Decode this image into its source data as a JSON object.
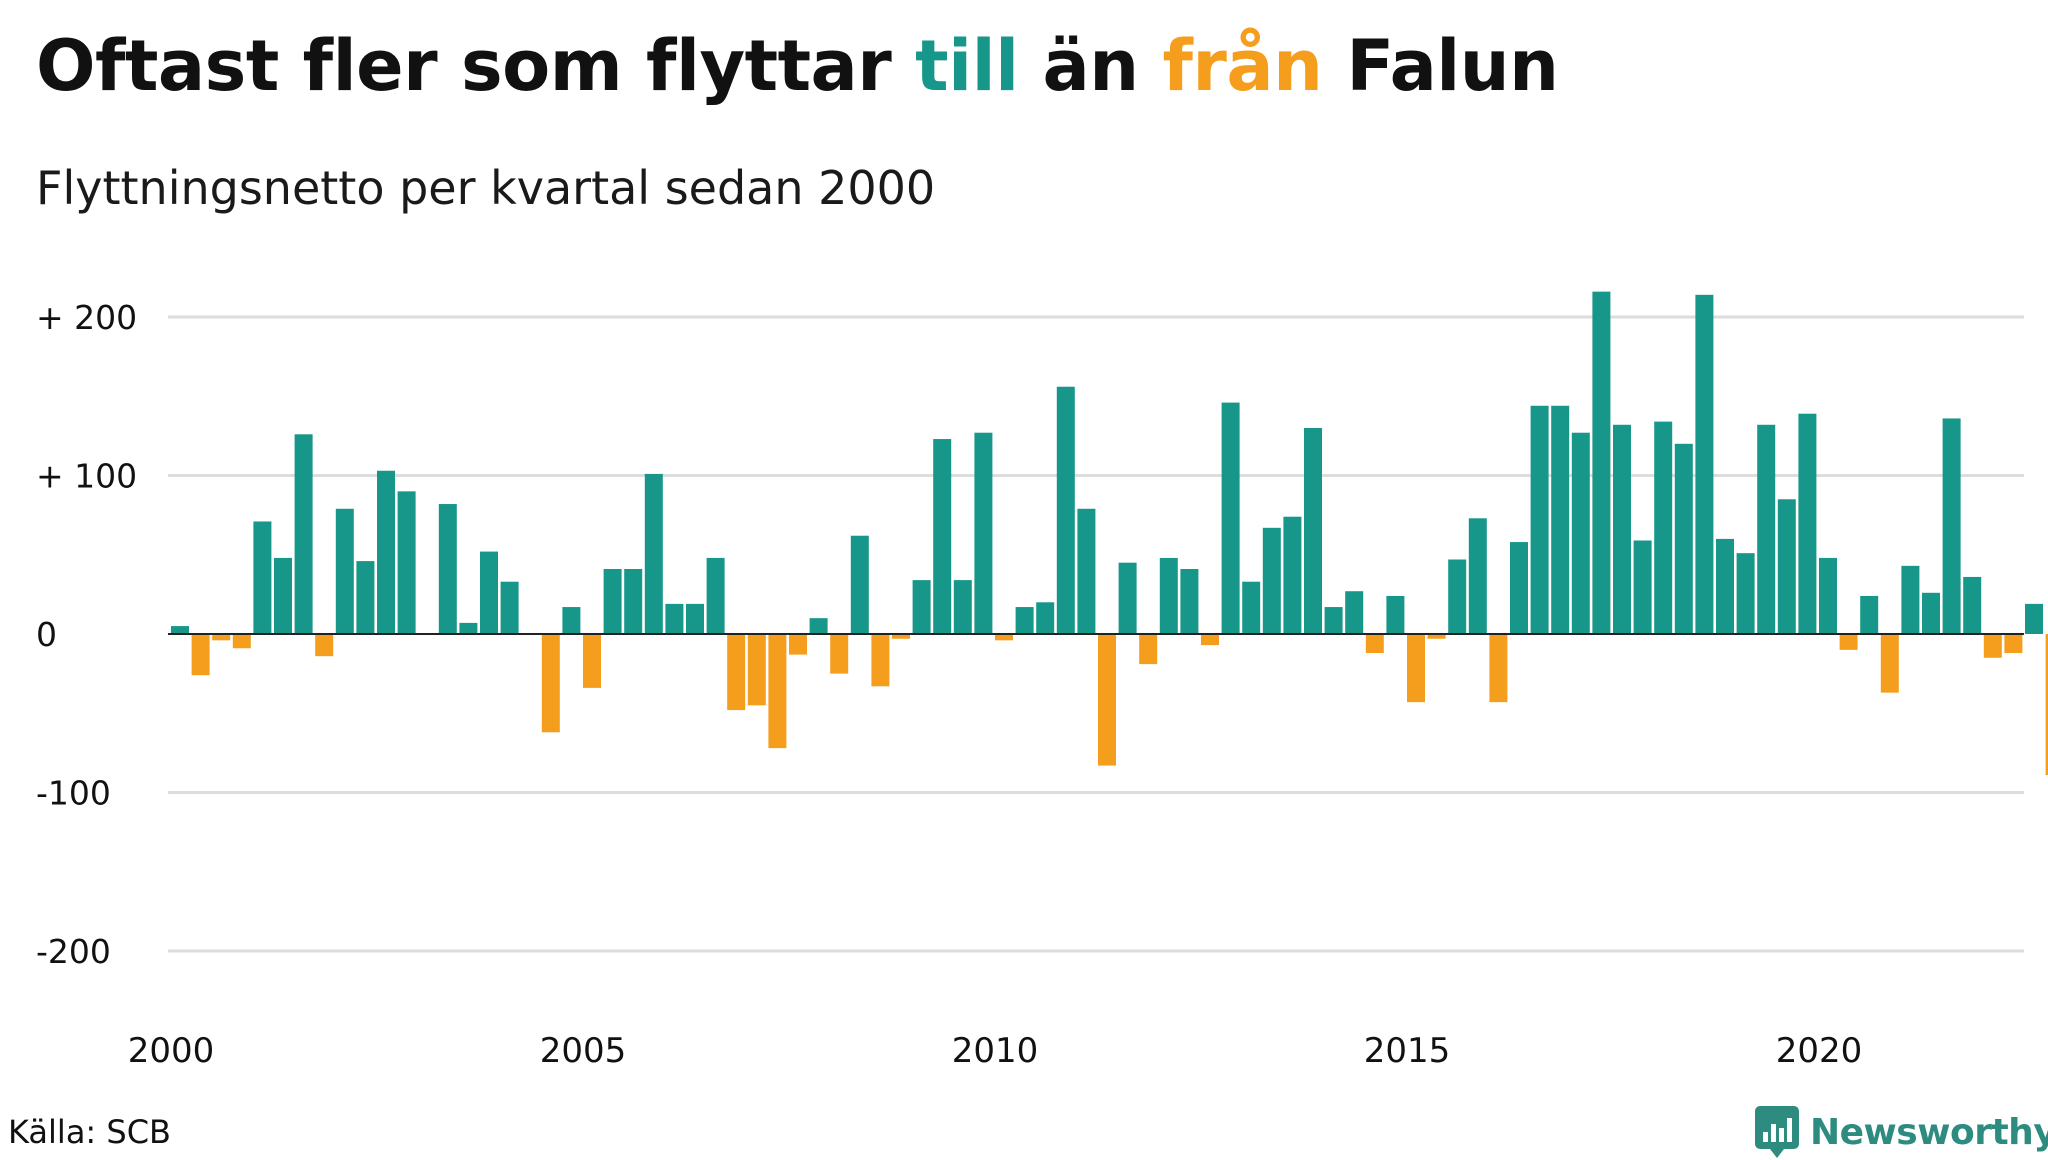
{
  "title": {
    "part1": "Oftast fler som flyttar ",
    "till": "till",
    "part2": " än ",
    "fran": "från",
    "part3": " Falun"
  },
  "subtitle": "Flyttningsnetto per kvartal sedan 2000",
  "source": "Källa: SCB",
  "brand": "Newsworthy",
  "colors": {
    "positive": "#17978a",
    "negative": "#f59e1d",
    "grid": "#dddddd",
    "baseline": "#222222",
    "text": "#111111",
    "brand": "#2e8b80"
  },
  "chart_data": {
    "type": "bar",
    "title": "Oftast fler som flyttar till än från Falun",
    "subtitle": "Flyttningsnetto per kvartal sedan 2000",
    "x_start": 2000,
    "periods_per_year": 4,
    "ylim": [
      -200,
      200
    ],
    "yticks": [
      {
        "value": 200,
        "label": "+ 200"
      },
      {
        "value": 100,
        "label": "+ 100"
      },
      {
        "value": 0,
        "label": "0"
      },
      {
        "value": -100,
        "label": "-100"
      },
      {
        "value": -200,
        "label": "-200"
      }
    ],
    "xticks": [
      "2000",
      "2005",
      "2010",
      "2015",
      "2020"
    ],
    "grid": true,
    "values": [
      5,
      -26,
      -4,
      -9,
      71,
      48,
      126,
      -14,
      79,
      46,
      103,
      90,
      0,
      82,
      7,
      52,
      33,
      0,
      -62,
      17,
      -34,
      41,
      41,
      101,
      19,
      19,
      48,
      -48,
      -45,
      -72,
      -13,
      10,
      -25,
      62,
      -33,
      -3,
      34,
      123,
      34,
      127,
      -4,
      17,
      20,
      156,
      79,
      -83,
      45,
      -19,
      48,
      41,
      -7,
      146,
      33,
      67,
      74,
      130,
      17,
      27,
      -12,
      24,
      -43,
      -3,
      47,
      73,
      -43,
      58,
      144,
      144,
      127,
      216,
      132,
      59,
      134,
      120,
      214,
      60,
      51,
      132,
      85,
      139,
      48,
      -10,
      24,
      -37,
      43,
      26,
      136,
      36,
      -15,
      -12,
      19,
      -89
    ]
  }
}
